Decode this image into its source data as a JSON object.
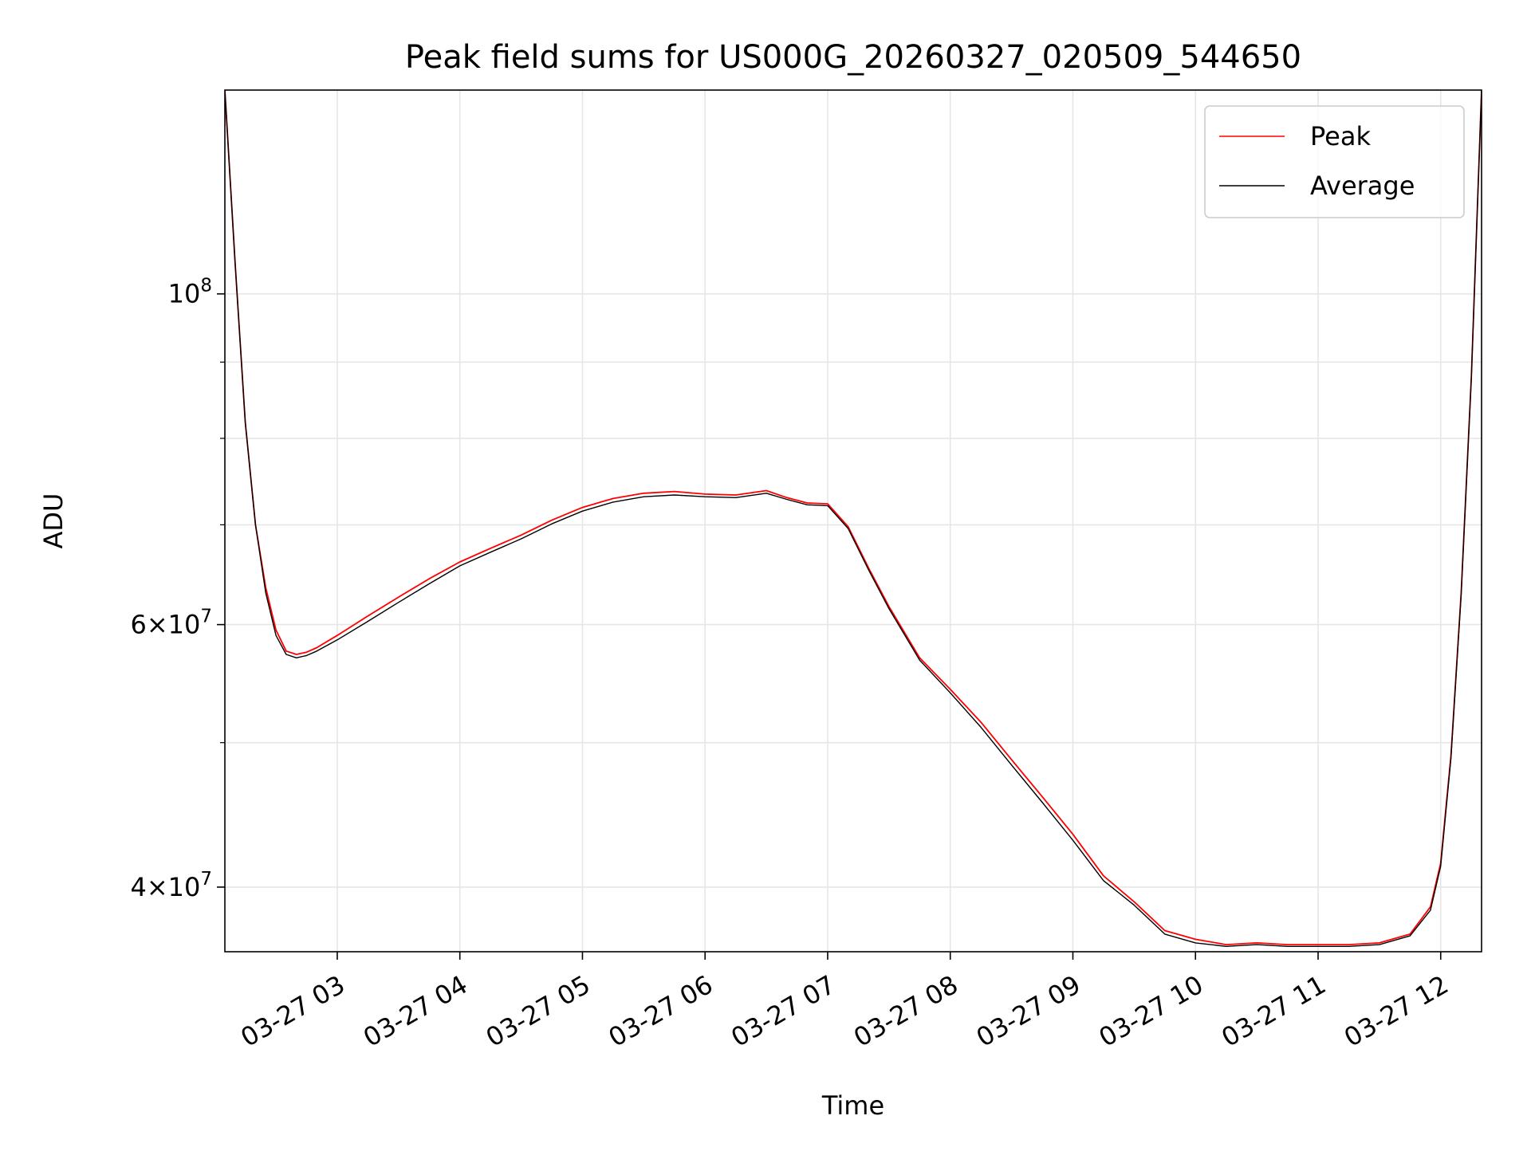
{
  "chart_data": {
    "type": "line",
    "title": "Peak field sums for US000G_20260327_020509_544650",
    "xlabel": "Time",
    "ylabel": "ADU",
    "yscale": "log",
    "grid": true,
    "legend_position": "top-right",
    "xlim": [
      "03-27 02:05",
      "03-27 12:20"
    ],
    "ylim": [
      36200000,
      137000000
    ],
    "x_tick_labels": [
      "03-27 03",
      "03-27 04",
      "03-27 05",
      "03-27 06",
      "03-27 07",
      "03-27 08",
      "03-27 09",
      "03-27 10",
      "03-27 11",
      "03-27 12"
    ],
    "x_tick_values": [
      "03-27 03:00",
      "03-27 04:00",
      "03-27 05:00",
      "03-27 06:00",
      "03-27 07:00",
      "03-27 08:00",
      "03-27 09:00",
      "03-27 10:00",
      "03-27 11:00",
      "03-27 12:00"
    ],
    "y_tick_labels": [
      {
        "value": 40000000,
        "mantissa": "4",
        "exponent": "7"
      },
      {
        "value": 60000000,
        "mantissa": "6",
        "exponent": "7"
      },
      {
        "value": 100000000,
        "mantissa": "",
        "exponent": "8"
      }
    ],
    "y_minor_ticks": [
      50000000,
      70000000,
      80000000,
      90000000
    ],
    "series": [
      {
        "name": "Peak",
        "color": "#ff0000",
        "x": [
          "03-27 02:05",
          "03-27 02:10",
          "03-27 02:15",
          "03-27 02:20",
          "03-27 02:25",
          "03-27 02:30",
          "03-27 02:35",
          "03-27 02:40",
          "03-27 02:45",
          "03-27 02:50",
          "03-27 03:00",
          "03-27 03:15",
          "03-27 03:30",
          "03-27 03:45",
          "03-27 04:00",
          "03-27 04:15",
          "03-27 04:30",
          "03-27 04:45",
          "03-27 05:00",
          "03-27 05:15",
          "03-27 05:30",
          "03-27 05:45",
          "03-27 06:00",
          "03-27 06:15",
          "03-27 06:30",
          "03-27 06:40",
          "03-27 06:50",
          "03-27 07:00",
          "03-27 07:10",
          "03-27 07:20",
          "03-27 07:30",
          "03-27 07:45",
          "03-27 08:00",
          "03-27 08:15",
          "03-27 08:30",
          "03-27 08:45",
          "03-27 09:00",
          "03-27 09:15",
          "03-27 09:30",
          "03-27 09:45",
          "03-27 10:00",
          "03-27 10:15",
          "03-27 10:30",
          "03-27 10:45",
          "03-27 11:00",
          "03-27 11:15",
          "03-27 11:30",
          "03-27 11:45",
          "03-27 11:55",
          "03-27 12:00",
          "03-27 12:05",
          "03-27 12:10",
          "03-27 12:15",
          "03-27 12:20"
        ],
        "y": [
          137000000,
          105000000,
          82000000,
          70000000,
          63500000,
          59500000,
          57600000,
          57300000,
          57500000,
          57900000,
          59000000,
          60800000,
          62600000,
          64400000,
          66100000,
          67500000,
          68900000,
          70500000,
          71900000,
          72900000,
          73500000,
          73700000,
          73400000,
          73300000,
          73800000,
          73000000,
          72400000,
          72300000,
          69800000,
          65500000,
          61700000,
          57000000,
          54300000,
          51600000,
          48700000,
          46000000,
          43400000,
          40700000,
          39100000,
          37400000,
          36900000,
          36600000,
          36700000,
          36600000,
          36600000,
          36600000,
          36700000,
          37200000,
          38800000,
          41500000,
          49000000,
          63000000,
          88000000,
          137000000
        ]
      },
      {
        "name": "Average",
        "color": "#000000",
        "x": [
          "03-27 02:05",
          "03-27 02:10",
          "03-27 02:15",
          "03-27 02:20",
          "03-27 02:25",
          "03-27 02:30",
          "03-27 02:35",
          "03-27 02:40",
          "03-27 02:45",
          "03-27 02:50",
          "03-27 03:00",
          "03-27 03:15",
          "03-27 03:30",
          "03-27 03:45",
          "03-27 04:00",
          "03-27 04:15",
          "03-27 04:30",
          "03-27 04:45",
          "03-27 05:00",
          "03-27 05:15",
          "03-27 05:30",
          "03-27 05:45",
          "03-27 06:00",
          "03-27 06:15",
          "03-27 06:30",
          "03-27 06:40",
          "03-27 06:50",
          "03-27 07:00",
          "03-27 07:10",
          "03-27 07:20",
          "03-27 07:30",
          "03-27 07:45",
          "03-27 08:00",
          "03-27 08:15",
          "03-27 08:30",
          "03-27 08:45",
          "03-27 09:00",
          "03-27 09:15",
          "03-27 09:30",
          "03-27 09:45",
          "03-27 10:00",
          "03-27 10:15",
          "03-27 10:30",
          "03-27 10:45",
          "03-27 11:00",
          "03-27 11:15",
          "03-27 11:30",
          "03-27 11:45",
          "03-27 11:55",
          "03-27 12:00",
          "03-27 12:05",
          "03-27 12:10",
          "03-27 12:15",
          "03-27 12:20"
        ],
        "y": [
          137000000,
          105000000,
          82000000,
          70000000,
          63000000,
          59000000,
          57300000,
          57000000,
          57200000,
          57600000,
          58600000,
          60300000,
          62100000,
          63900000,
          65700000,
          67100000,
          68500000,
          70100000,
          71500000,
          72500000,
          73100000,
          73300000,
          73100000,
          73000000,
          73500000,
          72800000,
          72200000,
          72100000,
          69600000,
          65300000,
          61500000,
          56800000,
          54000000,
          51200000,
          48300000,
          45600000,
          43000000,
          40400000,
          38900000,
          37200000,
          36700000,
          36500000,
          36600000,
          36500000,
          36500000,
          36500000,
          36600000,
          37100000,
          38600000,
          41300000,
          48800000,
          62800000,
          87800000,
          137000000
        ]
      }
    ]
  }
}
